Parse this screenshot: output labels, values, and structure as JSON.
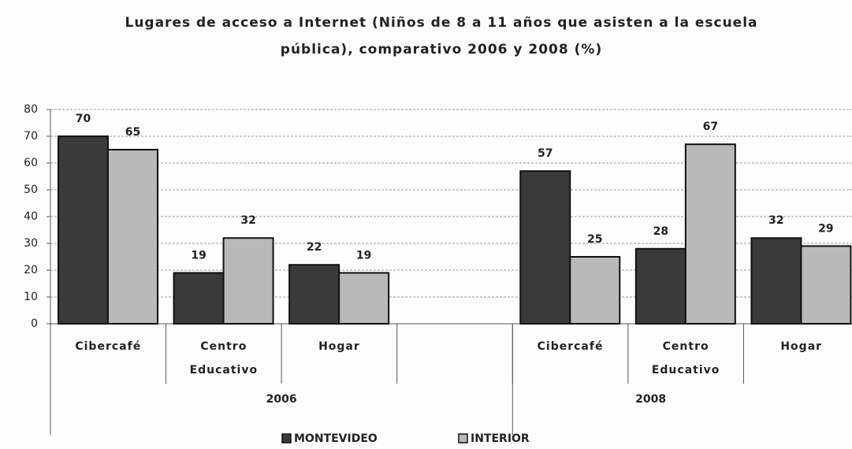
{
  "chart_data": {
    "type": "bar",
    "title": "Lugares de acceso a Internet (Niños de 8 a 11 años que asisten a la escuela pública), comparativo 2006 y 2008 (%)",
    "categories": [
      "Cibercafé",
      "Centro Educativo",
      "Hogar",
      null,
      "Cibercafé",
      "Centro Educativo",
      "Hogar"
    ],
    "groups": [
      "2006",
      "2008"
    ],
    "series": [
      {
        "name": "MONTEVIDEO",
        "color": "#3a3a3a",
        "values": [
          70,
          19,
          22,
          null,
          57,
          28,
          32
        ]
      },
      {
        "name": "INTERIOR",
        "color": "#b9b9b9",
        "values": [
          65,
          32,
          19,
          null,
          25,
          67,
          29
        ]
      }
    ],
    "ylim": [
      0,
      80
    ],
    "yticks": [
      0,
      10,
      20,
      30,
      40,
      50,
      60,
      70,
      80
    ],
    "grid": true,
    "legend": "bottom"
  }
}
